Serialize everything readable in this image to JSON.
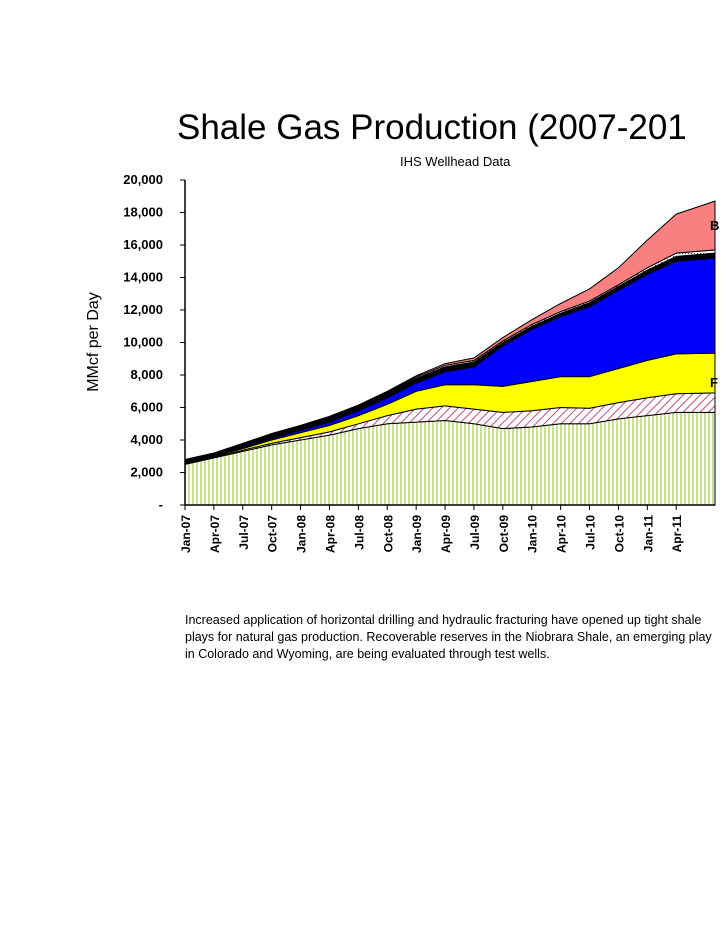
{
  "chart_data": {
    "type": "area",
    "stacked": true,
    "title": "Shale Gas Production (2007-201",
    "subtitle": "IHS Wellhead Data",
    "ylabel": "MMcf per Day",
    "ylim": [
      0,
      20000
    ],
    "yticks": [
      "20,000",
      "18,000",
      "16,000",
      "14,000",
      "12,000",
      "10,000",
      "8,000",
      "6,000",
      "4,000",
      "2,000",
      "-"
    ],
    "xticks": [
      "Jan-07",
      "Apr-07",
      "Jul-07",
      "Oct-07",
      "Jan-08",
      "Apr-08",
      "Jul-08",
      "Oct-08",
      "Jan-09",
      "Apr-09",
      "Jul-09",
      "Oct-09",
      "Jan-10",
      "Apr-10",
      "Jul-10",
      "Oct-10",
      "Jan-11",
      "Apr-11"
    ],
    "cumulative_tops": [
      {
        "month": "Jan-07",
        "green": 2500,
        "hatched": 2550,
        "yellow": 2600,
        "blue": 2650,
        "black": 2750,
        "dotted": 2780,
        "salmon": 2800
      },
      {
        "month": "Apr-07",
        "green": 2900,
        "hatched": 2950,
        "yellow": 3000,
        "blue": 3050,
        "black": 3150,
        "dotted": 3180,
        "salmon": 3200
      },
      {
        "month": "Jul-07",
        "green": 3300,
        "hatched": 3370,
        "yellow": 3470,
        "blue": 3550,
        "black": 3720,
        "dotted": 3760,
        "salmon": 3800
      },
      {
        "month": "Oct-07",
        "green": 3700,
        "hatched": 3800,
        "yellow": 4000,
        "blue": 4100,
        "black": 4300,
        "dotted": 4350,
        "salmon": 4400
      },
      {
        "month": "Jan-08",
        "green": 4000,
        "hatched": 4150,
        "yellow": 4450,
        "blue": 4600,
        "black": 4820,
        "dotted": 4870,
        "salmon": 4900
      },
      {
        "month": "Apr-08",
        "green": 4300,
        "hatched": 4500,
        "yellow": 4900,
        "blue": 5100,
        "black": 5350,
        "dotted": 5400,
        "salmon": 5450
      },
      {
        "month": "Jul-08",
        "green": 4700,
        "hatched": 5000,
        "yellow": 5500,
        "blue": 5800,
        "black": 6050,
        "dotted": 6100,
        "salmon": 6150
      },
      {
        "month": "Oct-08",
        "green": 5000,
        "hatched": 5500,
        "yellow": 6200,
        "blue": 6600,
        "black": 6900,
        "dotted": 6950,
        "salmon": 7000
      },
      {
        "month": "Jan-09",
        "green": 5100,
        "hatched": 5900,
        "yellow": 7000,
        "blue": 7500,
        "black": 7800,
        "dotted": 7880,
        "salmon": 7950
      },
      {
        "month": "Apr-09",
        "green": 5200,
        "hatched": 6100,
        "yellow": 7400,
        "blue": 8200,
        "black": 8500,
        "dotted": 8600,
        "salmon": 8700
      },
      {
        "month": "Jul-09",
        "green": 5000,
        "hatched": 5900,
        "yellow": 7400,
        "blue": 8500,
        "black": 8800,
        "dotted": 8900,
        "salmon": 9050
      },
      {
        "month": "Oct-09",
        "green": 4700,
        "hatched": 5700,
        "yellow": 7300,
        "blue": 9800,
        "black": 10000,
        "dotted": 10100,
        "salmon": 10300
      },
      {
        "month": "Jan-10",
        "green": 4800,
        "hatched": 5800,
        "yellow": 7600,
        "blue": 10800,
        "black": 11000,
        "dotted": 11100,
        "salmon": 11400
      },
      {
        "month": "Apr-10",
        "green": 5000,
        "hatched": 6000,
        "yellow": 7900,
        "blue": 11600,
        "black": 11800,
        "dotted": 11900,
        "salmon": 12400
      },
      {
        "month": "Jul-10",
        "green": 5000,
        "hatched": 5950,
        "yellow": 7900,
        "blue": 12200,
        "black": 12450,
        "dotted": 12550,
        "salmon": 13300
      },
      {
        "month": "Oct-10",
        "green": 5300,
        "hatched": 6300,
        "yellow": 8400,
        "blue": 13200,
        "black": 13450,
        "dotted": 13550,
        "salmon": 14600
      },
      {
        "month": "Jan-11",
        "green": 5500,
        "hatched": 6600,
        "yellow": 8900,
        "blue": 14200,
        "black": 14450,
        "dotted": 14600,
        "salmon": 16300
      },
      {
        "month": "Apr-11",
        "green": 5700,
        "hatched": 6850,
        "yellow": 9300,
        "blue": 15000,
        "black": 15300,
        "dotted": 15500,
        "salmon": 17900
      },
      {
        "month": "Jun-11",
        "green": 5700,
        "hatched": 6900,
        "yellow": 9350,
        "blue": 15200,
        "black": 15500,
        "dotted": 15700,
        "salmon": 18700
      }
    ],
    "grid": false,
    "legend": "none"
  },
  "colors": {
    "green": "#cfe39a",
    "hatched": "#e8b9c8",
    "yellow": "#ffff00",
    "blue": "#0000ff",
    "black": "#000000",
    "dotted": "#ffffff",
    "salmon": "#f88080"
  },
  "side_labels": [
    "B",
    "F"
  ],
  "caption": "Increased application of horizontal drilling and hydraulic fracturing have opened up tight shale plays for natural gas production. Recoverable reserves in the Niobrara Shale, an emerging play in Colorado and Wyoming, are being evaluated through test wells."
}
